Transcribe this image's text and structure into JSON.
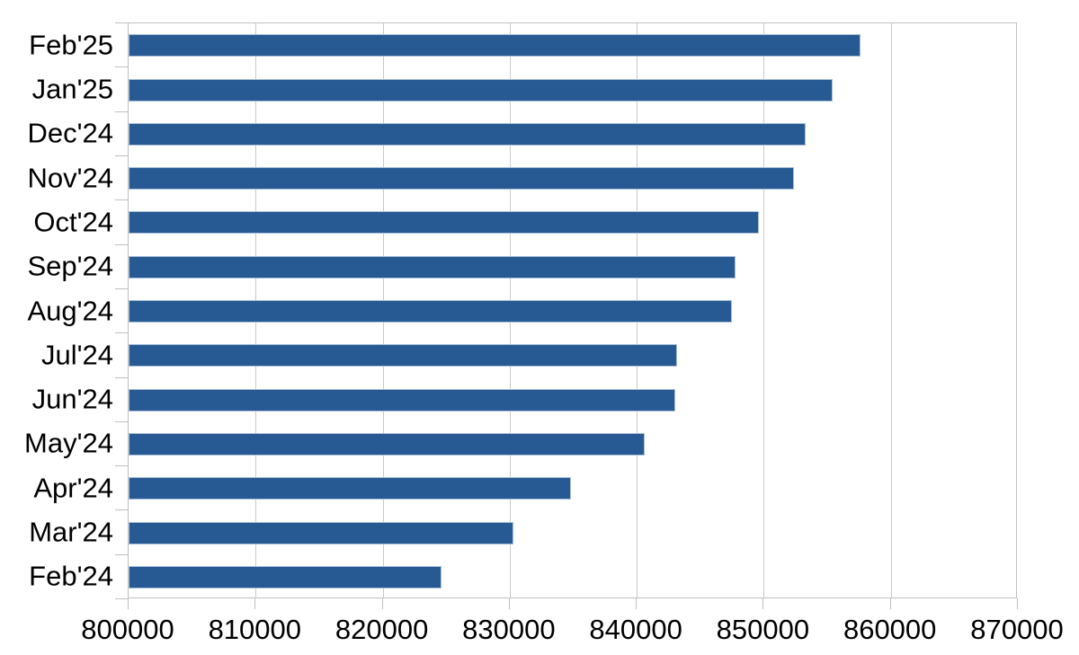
{
  "chart_data": {
    "type": "bar",
    "orientation": "horizontal",
    "title": "",
    "xlabel": "",
    "ylabel": "",
    "categories": [
      "Feb'25",
      "Jan'25",
      "Dec'24",
      "Nov'24",
      "Oct'24",
      "Sep'24",
      "Aug'24",
      "Jul'24",
      "Jun'24",
      "May'24",
      "Apr'24",
      "Mar'24",
      "Feb'24"
    ],
    "values": [
      857600,
      855400,
      853300,
      852400,
      849600,
      847800,
      847500,
      843200,
      843000,
      840600,
      834800,
      830300,
      824600
    ],
    "xlim": [
      800000,
      870000
    ],
    "x_ticks": [
      800000,
      810000,
      820000,
      830000,
      840000,
      850000,
      860000,
      870000
    ],
    "x_tick_labels": [
      "800000",
      "810000",
      "820000",
      "830000",
      "840000",
      "850000",
      "860000",
      "870000"
    ],
    "grid": true,
    "legend": false,
    "colors": {
      "bar_fill": "#275A93",
      "bar_border": "#A8BFD8",
      "gridline": "#C9C9C9",
      "axis_line": "#BFBFBF",
      "label_text": "#000000",
      "background": "#FFFFFF"
    }
  }
}
